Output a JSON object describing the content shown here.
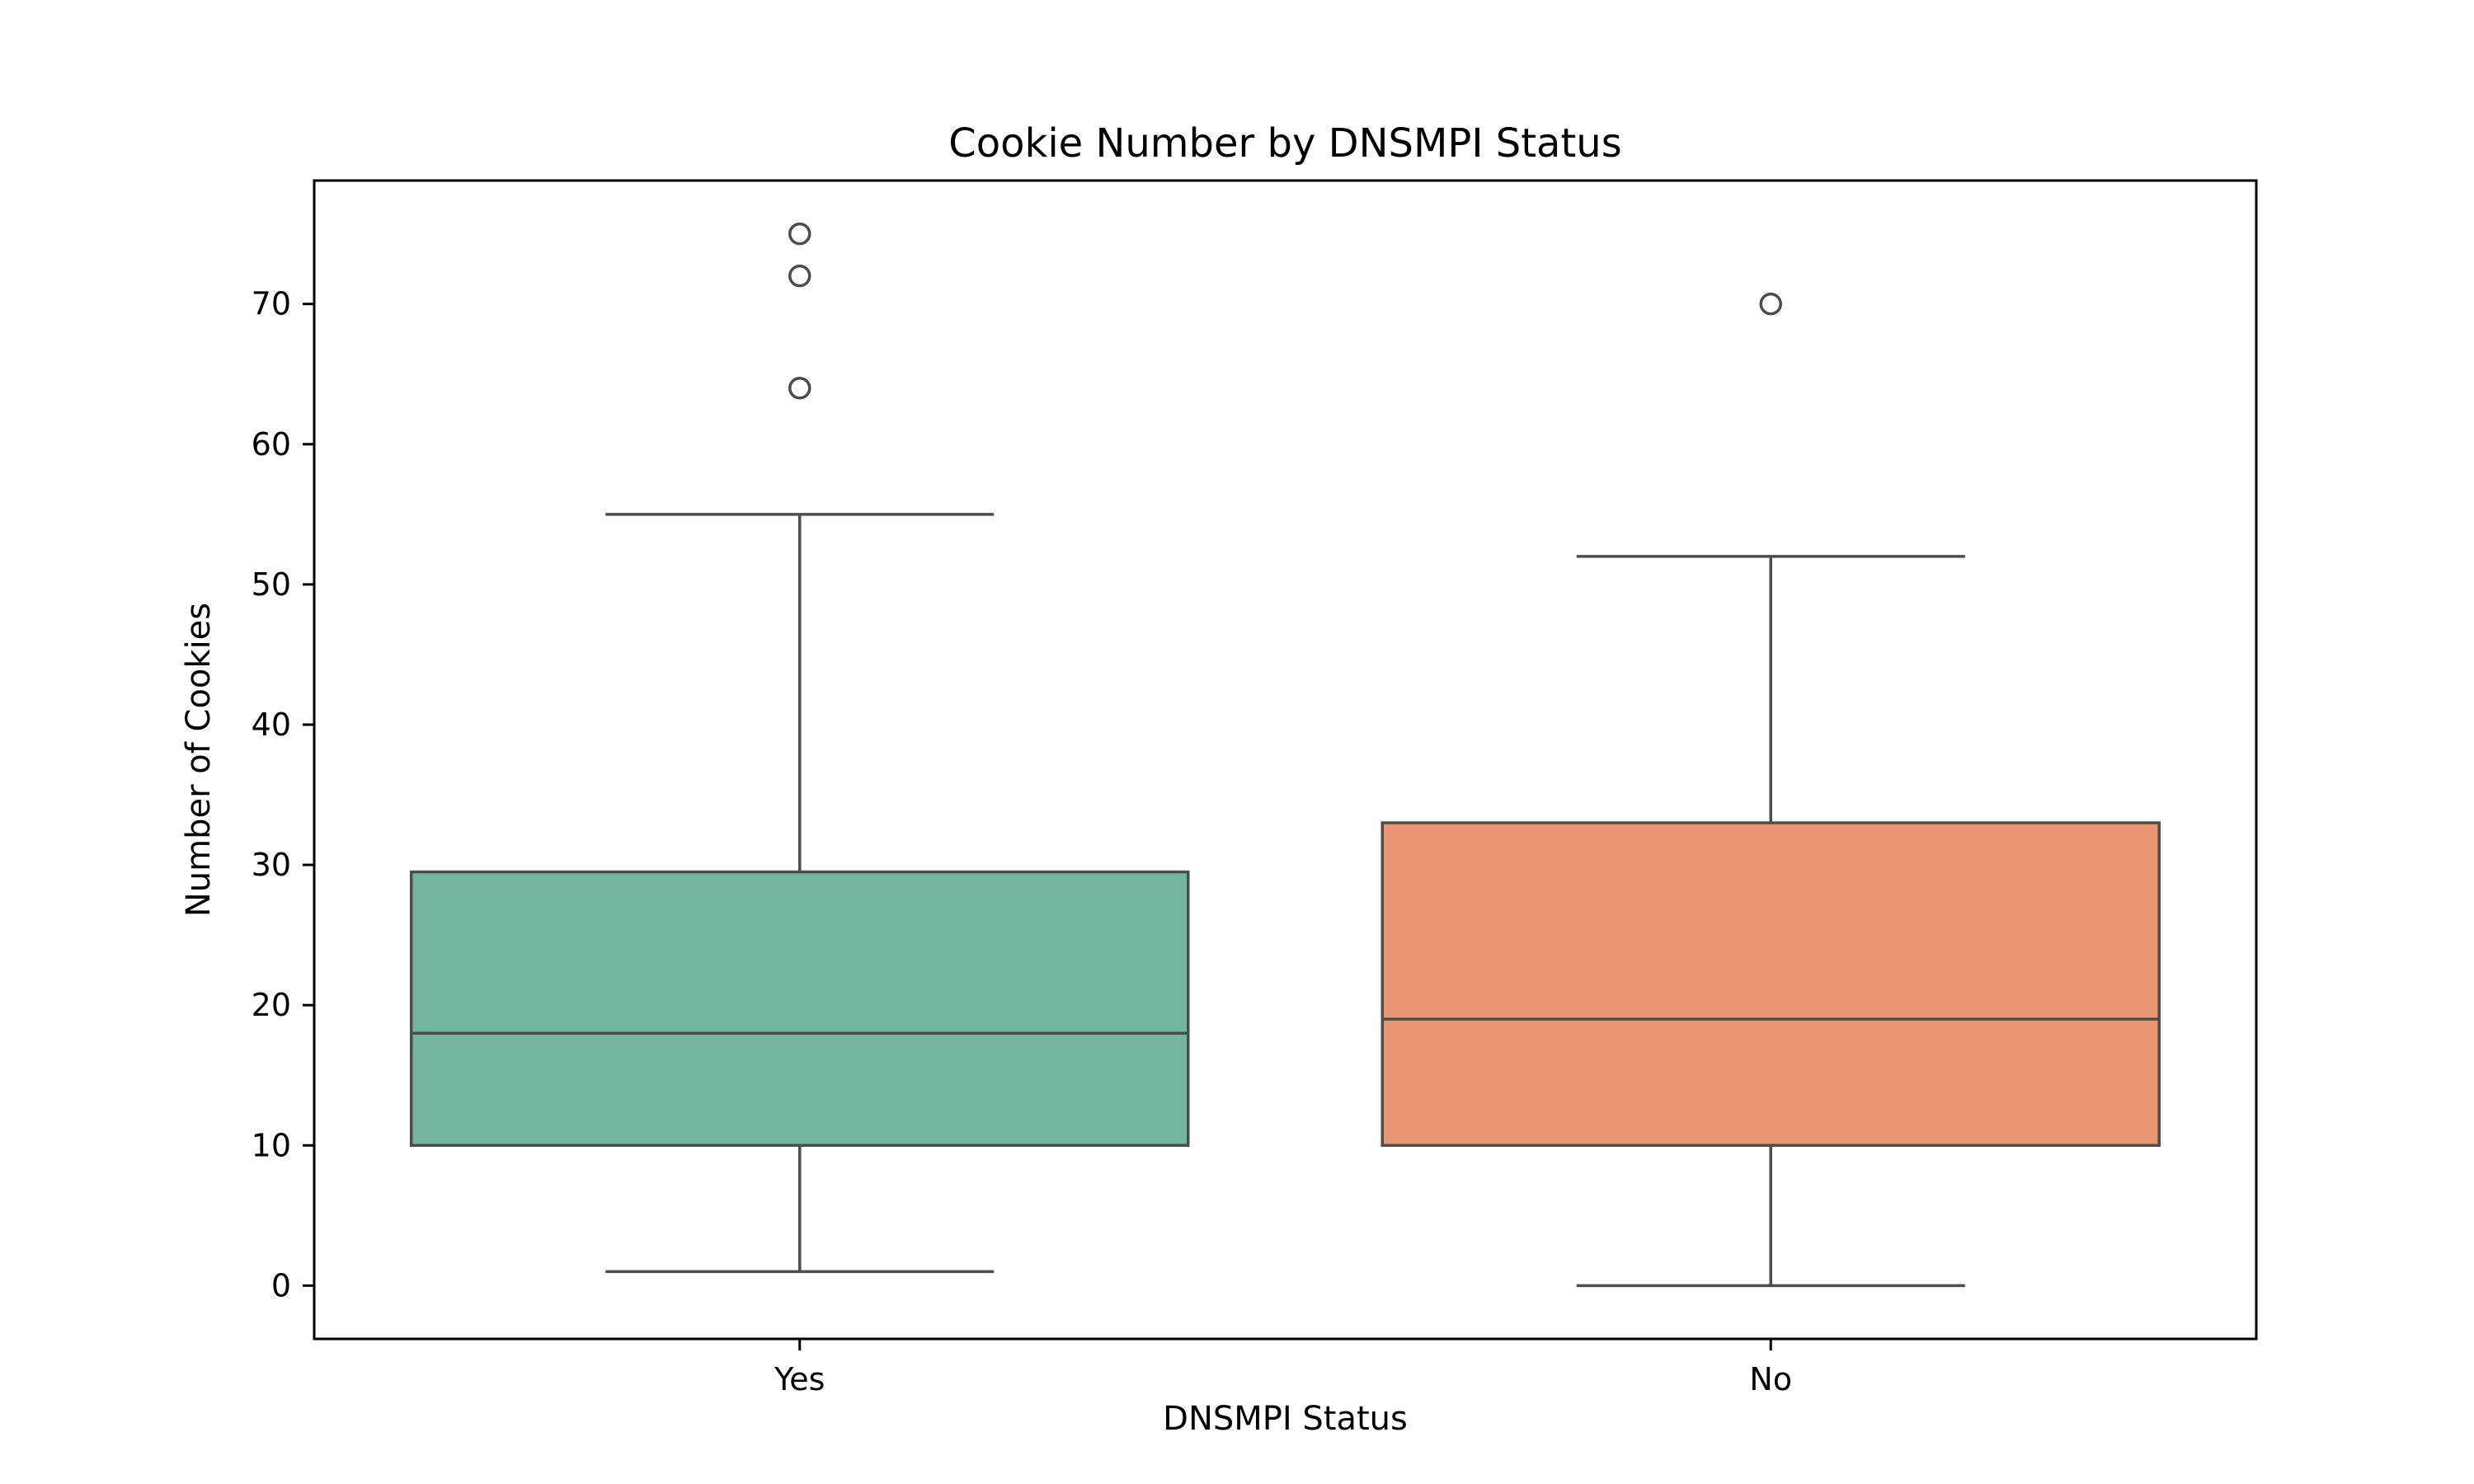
{
  "chart_data": {
    "type": "box",
    "title": "Cookie Number by DNSMPI Status",
    "xlabel": "DNSMPI Status",
    "ylabel": "Number of Cookies",
    "categories": [
      "Yes",
      "No"
    ],
    "ylim": [
      -3.8,
      78.8
    ],
    "yticks": [
      0,
      10,
      20,
      30,
      40,
      50,
      60,
      70
    ],
    "grid": false,
    "legend": "none",
    "boxes": [
      {
        "category": "Yes",
        "whisker_low": 1,
        "q1": 10,
        "median": 18,
        "q3": 29.5,
        "whisker_high": 55,
        "outliers": [
          64,
          72,
          75
        ],
        "color": "#73b5a1"
      },
      {
        "category": "No",
        "whisker_low": 0,
        "q1": 10,
        "median": 19,
        "q3": 33,
        "whisker_high": 52,
        "outliers": [
          70
        ],
        "color": "#e89674"
      }
    ],
    "line_color": "#4d4d4d"
  }
}
